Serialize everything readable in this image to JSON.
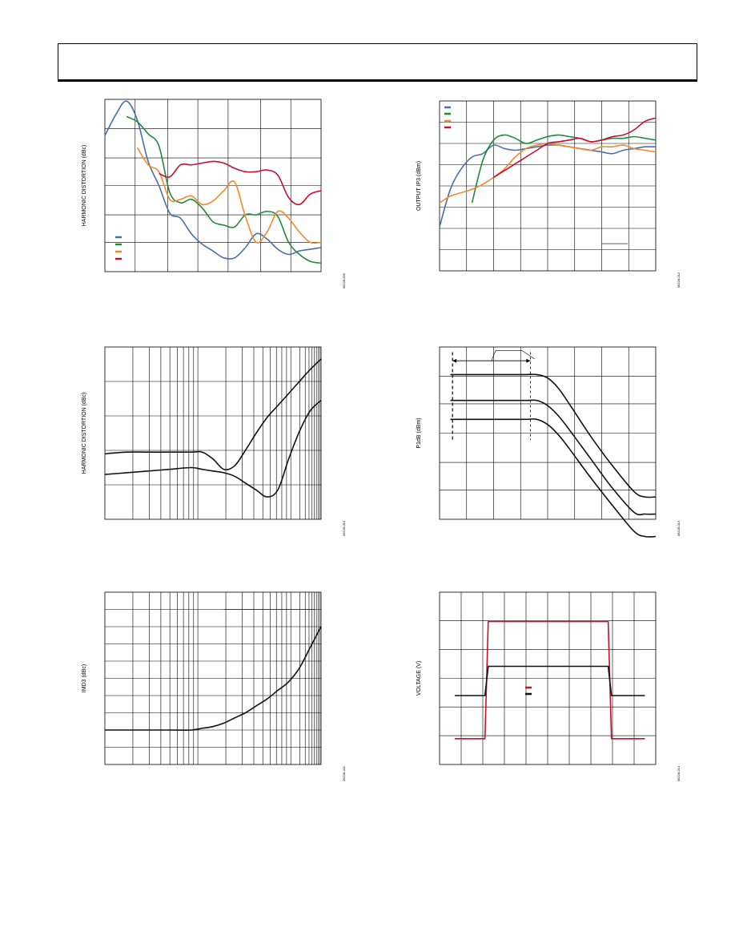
{
  "figure_ids": [
    "06228-009",
    "06228-012",
    "06228-010",
    "06228-013",
    "06228-011",
    "06228-014"
  ],
  "colors": {
    "blue": "#4a6fa5",
    "green": "#1e8a3c",
    "orange": "#f08a2a",
    "red": "#c8102e",
    "black": "#111111"
  },
  "chart_data": [
    {
      "type": "line",
      "title": "",
      "ylabel": "HARMONIC DISTORTION (dBc)",
      "xlabel": "",
      "grid": true,
      "legend": "lower-left",
      "x": [
        0,
        0.05,
        0.1,
        0.15,
        0.2,
        0.25,
        0.3,
        0.35,
        0.4,
        0.45,
        0.5,
        0.55,
        0.6,
        0.65,
        0.7,
        0.75,
        0.8,
        0.85,
        0.9,
        0.95,
        1.0
      ],
      "series": [
        {
          "color": "blue",
          "values": [
            0.21,
            0.09,
            0.01,
            0.12,
            0.36,
            0.5,
            0.66,
            0.69,
            0.78,
            0.84,
            0.88,
            0.92,
            0.92,
            0.86,
            0.78,
            0.81,
            0.87,
            0.9,
            0.88,
            0.87,
            0.86
          ]
        },
        {
          "color": "green",
          "values": [
            null,
            null,
            0.1,
            0.13,
            0.2,
            0.27,
            0.54,
            0.6,
            0.58,
            0.63,
            0.71,
            0.73,
            0.74,
            0.67,
            0.67,
            0.65,
            0.68,
            0.83,
            0.9,
            0.94,
            0.95
          ]
        },
        {
          "color": "orange",
          "values": [
            null,
            null,
            null,
            0.28,
            0.38,
            0.42,
            0.58,
            0.58,
            0.56,
            0.61,
            0.59,
            0.53,
            0.48,
            0.68,
            0.83,
            0.77,
            0.65,
            0.69,
            0.77,
            0.83,
            0.83
          ]
        },
        {
          "color": "red",
          "values": [
            null,
            null,
            null,
            null,
            null,
            0.43,
            0.45,
            0.38,
            0.38,
            0.37,
            0.36,
            0.37,
            0.4,
            0.42,
            0.42,
            0.41,
            0.44,
            0.57,
            0.61,
            0.55,
            0.53
          ]
        }
      ]
    },
    {
      "type": "line",
      "title": "",
      "ylabel": "OUTPUT IP3 (dBm)",
      "xlabel": "",
      "grid": true,
      "legend": "top-left",
      "x": [
        0,
        0.05,
        0.1,
        0.15,
        0.2,
        0.25,
        0.3,
        0.35,
        0.4,
        0.45,
        0.5,
        0.55,
        0.6,
        0.65,
        0.7,
        0.75,
        0.8,
        0.85,
        0.9,
        0.95,
        1.0
      ],
      "series": [
        {
          "color": "blue",
          "values": [
            0.74,
            0.52,
            0.4,
            0.33,
            0.31,
            0.26,
            0.28,
            0.29,
            0.28,
            0.27,
            0.26,
            0.26,
            0.27,
            0.28,
            0.29,
            0.3,
            0.31,
            0.29,
            0.28,
            0.27,
            0.27
          ]
        },
        {
          "color": "green",
          "values": [
            null,
            null,
            null,
            0.6,
            0.35,
            0.23,
            0.2,
            0.22,
            0.25,
            0.23,
            0.21,
            0.2,
            0.21,
            0.22,
            0.24,
            0.23,
            0.22,
            0.22,
            0.21,
            0.22,
            0.23
          ]
        },
        {
          "color": "orange",
          "values": [
            0.6,
            0.56,
            0.54,
            0.52,
            0.49,
            0.45,
            0.4,
            0.33,
            0.28,
            0.26,
            0.25,
            0.26,
            0.27,
            0.28,
            0.29,
            0.27,
            0.27,
            0.26,
            0.28,
            0.29,
            0.3
          ]
        },
        {
          "color": "red",
          "values": [
            null,
            null,
            null,
            null,
            null,
            0.45,
            0.41,
            0.37,
            0.33,
            0.29,
            0.25,
            0.24,
            0.23,
            0.22,
            0.24,
            0.23,
            0.21,
            0.2,
            0.17,
            0.12,
            0.1
          ]
        }
      ]
    },
    {
      "type": "line",
      "title": "",
      "ylabel": "HARMONIC DISTORTION (dBc)",
      "xlabel": "",
      "xscale": "log",
      "grid": true,
      "legend": "none",
      "x": [
        0,
        0.1,
        0.2,
        0.3,
        0.4,
        0.45,
        0.5,
        0.55,
        0.6,
        0.65,
        0.7,
        0.75,
        0.8,
        0.85,
        0.9,
        0.95,
        1.0
      ],
      "series": [
        {
          "color": "black",
          "values": [
            0.62,
            0.61,
            0.61,
            0.61,
            0.61,
            0.61,
            0.65,
            0.71,
            0.69,
            0.6,
            0.5,
            0.41,
            0.34,
            0.27,
            0.2,
            0.13,
            0.07
          ]
        },
        {
          "color": "black",
          "values": [
            0.74,
            0.73,
            0.72,
            0.71,
            0.7,
            0.71,
            0.72,
            0.73,
            0.75,
            0.79,
            0.83,
            0.87,
            0.83,
            0.65,
            0.49,
            0.37,
            0.31
          ]
        }
      ]
    },
    {
      "type": "line",
      "title": "",
      "ylabel": "P1dB (dBm)",
      "xlabel": "",
      "grid": true,
      "legend": "none",
      "x": [
        0.05,
        0.1,
        0.2,
        0.3,
        0.4,
        0.45,
        0.5,
        0.55,
        0.6,
        0.7,
        0.8,
        0.9,
        0.95,
        1.0
      ],
      "series": [
        {
          "color": "black",
          "values": [
            0.16,
            0.16,
            0.16,
            0.16,
            0.16,
            0.16,
            0.18,
            0.24,
            0.33,
            0.52,
            0.69,
            0.84,
            0.87,
            0.87
          ]
        },
        {
          "color": "black",
          "values": [
            0.31,
            0.31,
            0.31,
            0.31,
            0.31,
            0.31,
            0.34,
            0.4,
            0.48,
            0.65,
            0.82,
            0.96,
            0.97,
            0.97
          ]
        },
        {
          "color": "black",
          "values": [
            0.42,
            0.42,
            0.42,
            0.42,
            0.42,
            0.42,
            0.45,
            0.51,
            0.59,
            0.76,
            0.92,
            1.07,
            1.1,
            1.1
          ]
        }
      ]
    },
    {
      "type": "line",
      "title": "",
      "ylabel": "IMD3 (dBc)",
      "xlabel": "",
      "xscale": "log",
      "grid": true,
      "legend": "none",
      "x": [
        0,
        0.1,
        0.2,
        0.3,
        0.4,
        0.45,
        0.5,
        0.55,
        0.6,
        0.65,
        0.7,
        0.75,
        0.8,
        0.85,
        0.9,
        0.95,
        1.0
      ],
      "series": [
        {
          "color": "black",
          "values": [
            0.8,
            0.8,
            0.8,
            0.8,
            0.8,
            0.79,
            0.78,
            0.76,
            0.73,
            0.7,
            0.66,
            0.62,
            0.57,
            0.52,
            0.44,
            0.32,
            0.2
          ]
        }
      ]
    },
    {
      "type": "line",
      "title": "",
      "ylabel": "VOLTAGE (V)",
      "xlabel": "",
      "grid": true,
      "legend": "center-right",
      "x": [
        0.07,
        0.21,
        0.225,
        0.3,
        0.4,
        0.5,
        0.6,
        0.7,
        0.78,
        0.795,
        0.9,
        0.95
      ],
      "series": [
        {
          "color": "red",
          "values": [
            0.85,
            0.85,
            0.17,
            0.17,
            0.17,
            0.17,
            0.17,
            0.17,
            0.17,
            0.85,
            0.85,
            0.85
          ]
        },
        {
          "color": "black",
          "values": [
            0.6,
            0.6,
            0.43,
            0.43,
            0.43,
            0.43,
            0.43,
            0.43,
            0.43,
            0.6,
            0.6,
            0.6
          ]
        }
      ]
    }
  ]
}
